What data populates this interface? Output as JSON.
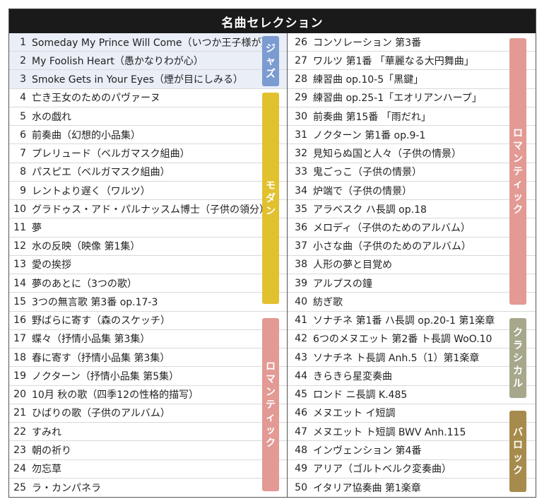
{
  "title": "名曲セレクション",
  "left_rows": [
    {
      "num": "1",
      "title": "Someday My Prince Will Come（いつか王子様が）"
    },
    {
      "num": "2",
      "title": "My Foolish Heart（愚かなりわが心）"
    },
    {
      "num": "3",
      "title": "Smoke Gets in Your Eyes（煙が目にしみる）"
    },
    {
      "num": "4",
      "title": "亡き王女のためのパヴァーヌ"
    },
    {
      "num": "5",
      "title": "水の戯れ"
    },
    {
      "num": "6",
      "title": "前奏曲（幻想的小品集）"
    },
    {
      "num": "7",
      "title": "プレリュード（ベルガマスク組曲）"
    },
    {
      "num": "8",
      "title": "パスピエ（ベルガマスク組曲）"
    },
    {
      "num": "9",
      "title": "レントより遅く（ワルツ）"
    },
    {
      "num": "10",
      "title": "グラドゥス・アド・パルナッスム博士（子供の領分）"
    },
    {
      "num": "11",
      "title": "夢"
    },
    {
      "num": "12",
      "title": "水の反映（映像 第1集）"
    },
    {
      "num": "13",
      "title": "愛の挨拶"
    },
    {
      "num": "14",
      "title": "夢のあとに（3つの歌）"
    },
    {
      "num": "15",
      "title": "3つの無言歌 第3番 op.17-3"
    },
    {
      "num": "16",
      "title": "野ばらに寄す（森のスケッチ）"
    },
    {
      "num": "17",
      "title": "蝶々（抒情小品集 第3集）"
    },
    {
      "num": "18",
      "title": "春に寄す（抒情小品集 第3集）"
    },
    {
      "num": "19",
      "title": "ノクターン（抒情小品集 第5集）"
    },
    {
      "num": "20",
      "title": "10月 秋の歌（四季12の性格的描写）"
    },
    {
      "num": "21",
      "title": "ひばりの歌（子供のアルバム）"
    },
    {
      "num": "22",
      "title": "すみれ"
    },
    {
      "num": "23",
      "title": "朝の祈り"
    },
    {
      "num": "24",
      "title": "勿忘草"
    },
    {
      "num": "25",
      "title": "ラ・カンパネラ"
    }
  ],
  "right_rows": [
    {
      "num": "26",
      "title": "コンソレーション 第3番"
    },
    {
      "num": "27",
      "title": "ワルツ 第1番 「華麗なる大円舞曲」"
    },
    {
      "num": "28",
      "title": "練習曲 op.10-5「黒鍵」"
    },
    {
      "num": "29",
      "title": "練習曲 op.25-1「エオリアンハープ」"
    },
    {
      "num": "30",
      "title": "前奏曲 第15番 「雨だれ」"
    },
    {
      "num": "31",
      "title": "ノクターン 第1番 op.9-1"
    },
    {
      "num": "32",
      "title": "見知らぬ国と人々（子供の情景）"
    },
    {
      "num": "33",
      "title": "鬼ごっこ（子供の情景）"
    },
    {
      "num": "34",
      "title": "炉端で（子供の情景）"
    },
    {
      "num": "35",
      "title": "アラベスク ハ長調 op.18"
    },
    {
      "num": "36",
      "title": "メロディ（子供のためのアルバム）"
    },
    {
      "num": "37",
      "title": "小さな曲（子供のためのアルバム）"
    },
    {
      "num": "38",
      "title": "人形の夢と目覚め"
    },
    {
      "num": "39",
      "title": "アルプスの鐘"
    },
    {
      "num": "40",
      "title": "紡ぎ歌"
    },
    {
      "num": "41",
      "title": "ソナチネ 第1番 ハ長調 op.20-1 第1楽章"
    },
    {
      "num": "42",
      "title": "6つのメヌエット 第2番 ト長調 WoO.10"
    },
    {
      "num": "43",
      "title": "ソナチネ ト長調 Anh.5（1）第1楽章"
    },
    {
      "num": "44",
      "title": "きらきら星変奏曲"
    },
    {
      "num": "45",
      "title": "ロンド ニ長調 K.485"
    },
    {
      "num": "46",
      "title": "メヌエット イ短調"
    },
    {
      "num": "47",
      "title": "メヌエット ト短調 BWV Anh.115"
    },
    {
      "num": "48",
      "title": "インヴェンション 第4番"
    },
    {
      "num": "49",
      "title": "アリア（ゴルトベルク変奏曲）"
    },
    {
      "num": "50",
      "title": "イタリア協奏曲 第1楽章"
    }
  ],
  "genres": {
    "jazz": {
      "label": "ジャズ",
      "color": "#7b9bd1"
    },
    "modern": {
      "label": "モダン",
      "color": "#e2c12f"
    },
    "romantic": {
      "label": "ロマンティック",
      "color": "#e39a94"
    },
    "classical": {
      "label": "クラシカル",
      "color": "#a7a78c"
    },
    "baroque": {
      "label": "バロック",
      "color": "#a78b4c"
    }
  }
}
